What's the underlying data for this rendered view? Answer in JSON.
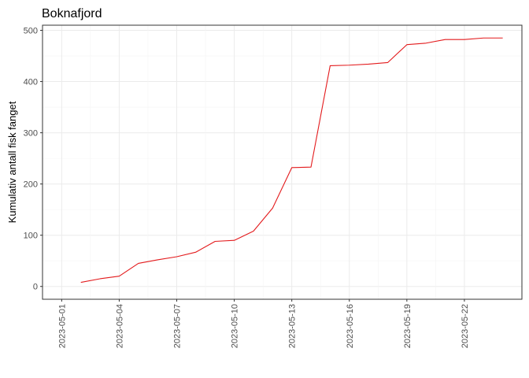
{
  "chart_data": {
    "type": "line",
    "title": "Boknafjord",
    "xlabel": "",
    "ylabel": "Kumulativ antall fisk fanget",
    "x_tick_labels": [
      "2023-05-01",
      "2023-05-04",
      "2023-05-07",
      "2023-05-10",
      "2023-05-13",
      "2023-05-16",
      "2023-05-19",
      "2023-05-22"
    ],
    "y_ticks": [
      0,
      100,
      200,
      300,
      400,
      500
    ],
    "xlim": [
      "2023-04-30",
      "2023-05-25"
    ],
    "ylim": [
      -25,
      510
    ],
    "grid": true,
    "legend": "none",
    "series": [
      {
        "color": "#e31a1c",
        "x": [
          "2023-05-02",
          "2023-05-03",
          "2023-05-04",
          "2023-05-05",
          "2023-05-06",
          "2023-05-07",
          "2023-05-08",
          "2023-05-09",
          "2023-05-10",
          "2023-05-11",
          "2023-05-12",
          "2023-05-13",
          "2023-05-14",
          "2023-05-15",
          "2023-05-16",
          "2023-05-17",
          "2023-05-18",
          "2023-05-19",
          "2023-05-20",
          "2023-05-21",
          "2023-05-22",
          "2023-05-23",
          "2023-05-24"
        ],
        "values": [
          8,
          15,
          20,
          45,
          52,
          58,
          67,
          88,
          90,
          108,
          153,
          232,
          233,
          431,
          432,
          434,
          437,
          472,
          475,
          482,
          482,
          485,
          485
        ]
      }
    ]
  }
}
